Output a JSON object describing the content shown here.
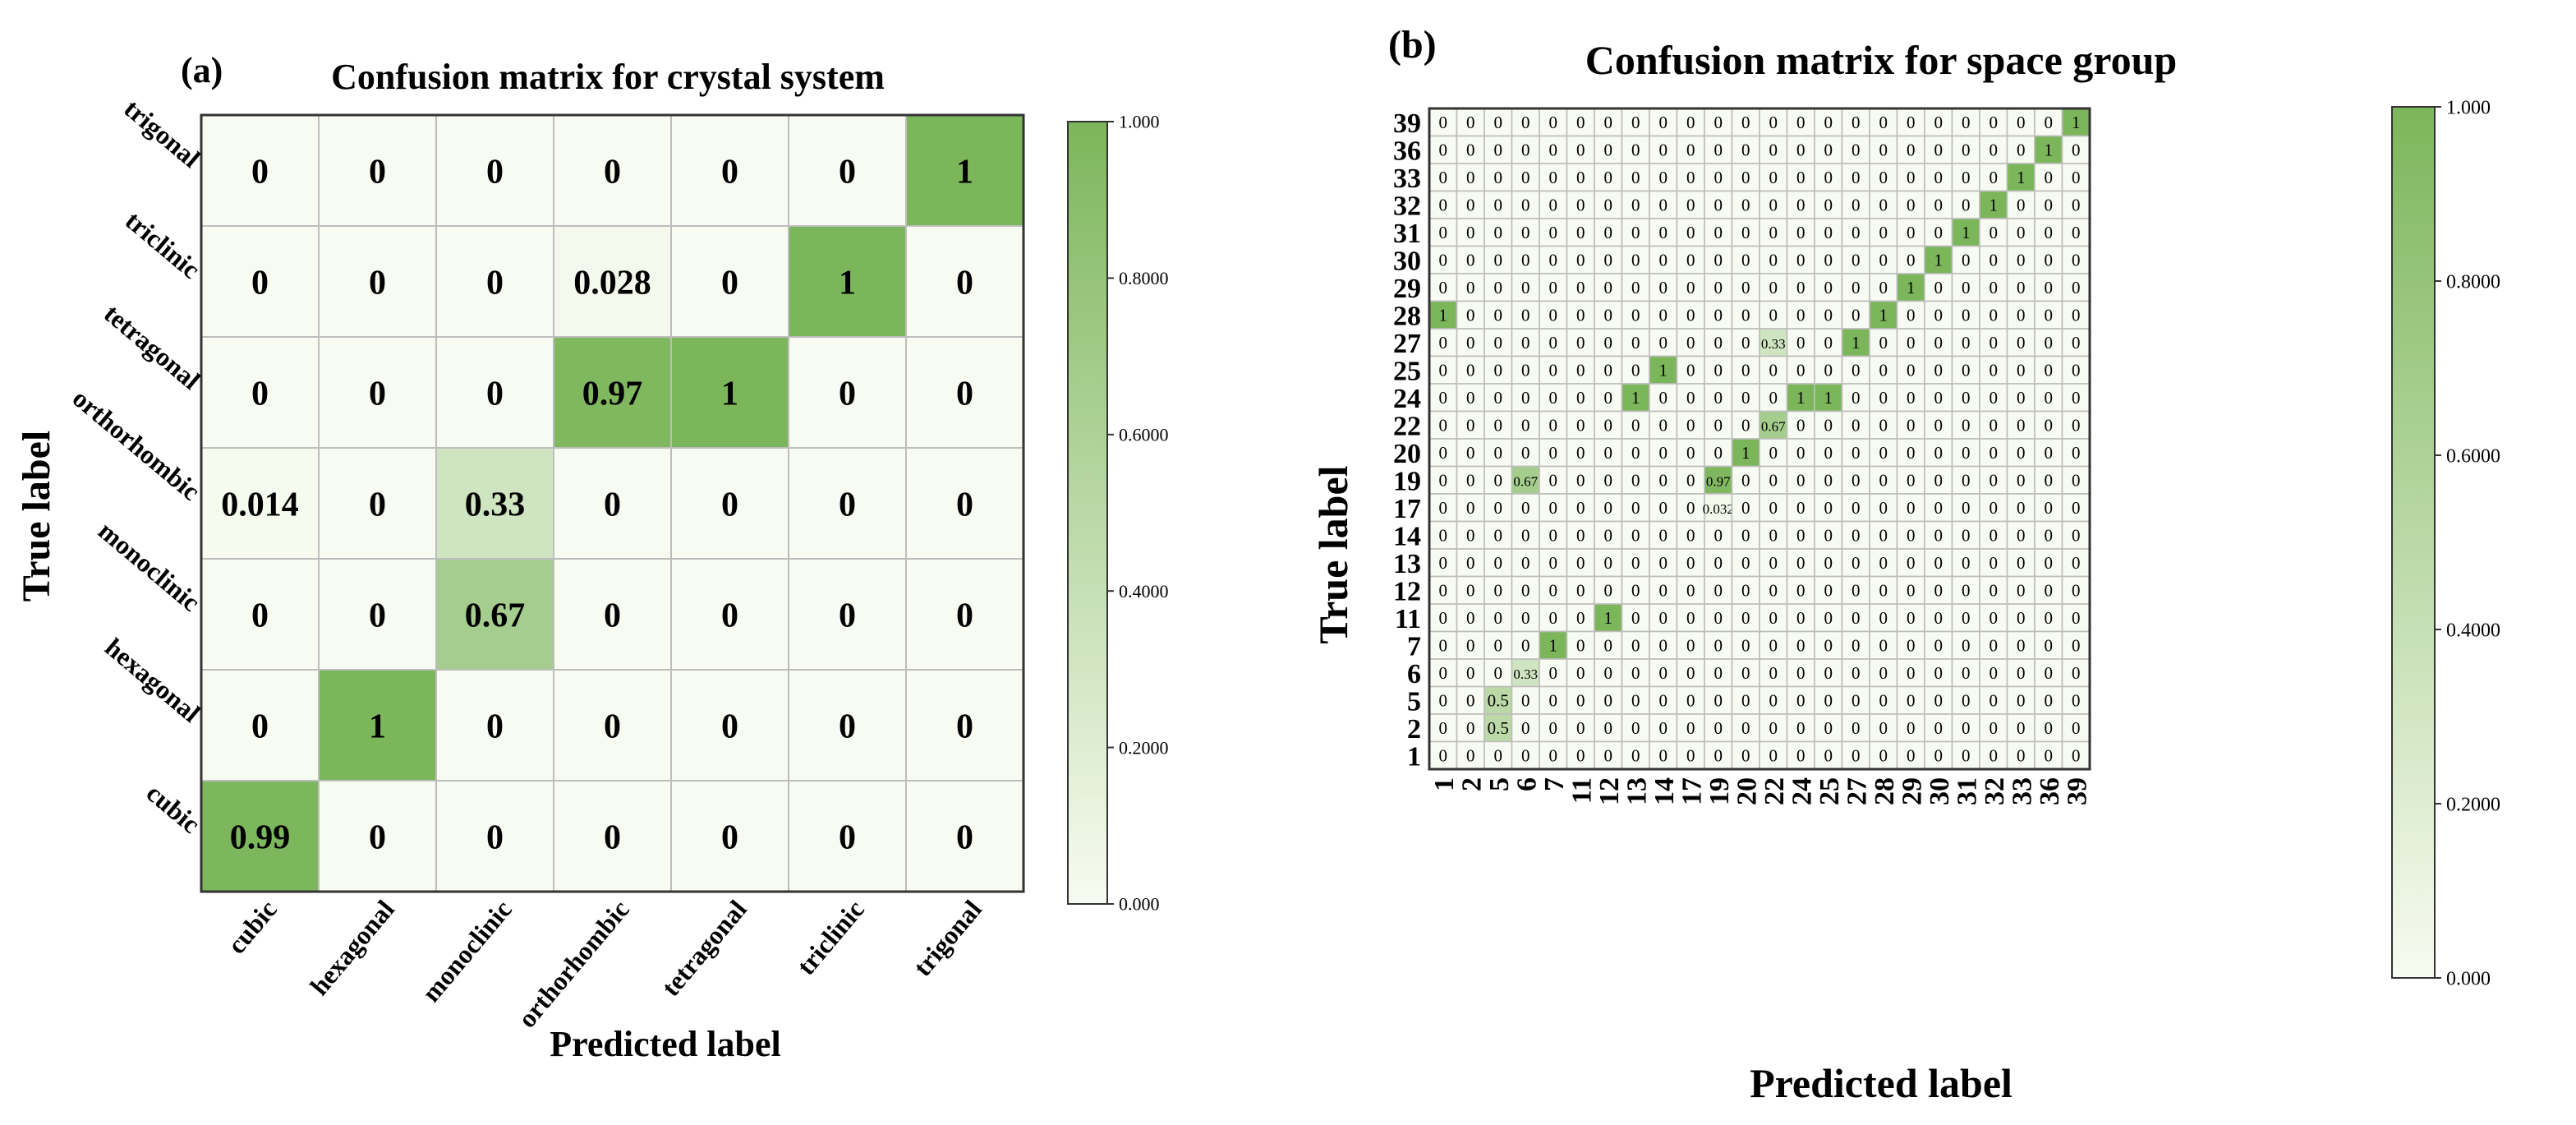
{
  "colors": {
    "low": "#f8fbf1",
    "high": "#7cb65b",
    "grid": "#bdbdbd",
    "frame": "#333333",
    "text": "#000000"
  },
  "chart_data": [
    {
      "type": "heatmap",
      "panel_label": "(a)",
      "title": "Confusion matrix for crystal system",
      "xlabel": "Predicted label",
      "ylabel": "True label",
      "x_categories": [
        "cubic",
        "hexagonal",
        "monoclinic",
        "orthorhombic",
        "tetragonal",
        "triclinic",
        "trigonal"
      ],
      "y_categories_top_to_bottom": [
        "trigonal",
        "triclinic",
        "tetragonal",
        "orthorhombic",
        "monoclinic",
        "hexagonal",
        "cubic"
      ],
      "cells": [
        [
          {
            "label": "0",
            "value": 0
          },
          {
            "label": "0",
            "value": 0
          },
          {
            "label": "0",
            "value": 0
          },
          {
            "label": "0",
            "value": 0
          },
          {
            "label": "0",
            "value": 0
          },
          {
            "label": "0",
            "value": 0
          },
          {
            "label": "1",
            "value": 1
          }
        ],
        [
          {
            "label": "0",
            "value": 0
          },
          {
            "label": "0",
            "value": 0
          },
          {
            "label": "0",
            "value": 0
          },
          {
            "label": "0.028",
            "value": 0.028
          },
          {
            "label": "0",
            "value": 0
          },
          {
            "label": "1",
            "value": 1
          },
          {
            "label": "0",
            "value": 0
          }
        ],
        [
          {
            "label": "0",
            "value": 0
          },
          {
            "label": "0",
            "value": 0
          },
          {
            "label": "0",
            "value": 0
          },
          {
            "label": "0.97",
            "value": 0.97
          },
          {
            "label": "1",
            "value": 1
          },
          {
            "label": "0",
            "value": 0
          },
          {
            "label": "0",
            "value": 0
          }
        ],
        [
          {
            "label": "0.014",
            "value": 0.014
          },
          {
            "label": "0",
            "value": 0
          },
          {
            "label": "0.33",
            "value": 0.33
          },
          {
            "label": "0",
            "value": 0
          },
          {
            "label": "0",
            "value": 0
          },
          {
            "label": "0",
            "value": 0
          },
          {
            "label": "0",
            "value": 0
          }
        ],
        [
          {
            "label": "0",
            "value": 0
          },
          {
            "label": "0",
            "value": 0
          },
          {
            "label": "0.67",
            "value": 0.67
          },
          {
            "label": "0",
            "value": 0
          },
          {
            "label": "0",
            "value": 0
          },
          {
            "label": "0",
            "value": 0
          },
          {
            "label": "0",
            "value": 0
          }
        ],
        [
          {
            "label": "0",
            "value": 0
          },
          {
            "label": "1",
            "value": 1
          },
          {
            "label": "0",
            "value": 0
          },
          {
            "label": "0",
            "value": 0
          },
          {
            "label": "0",
            "value": 0
          },
          {
            "label": "0",
            "value": 0
          },
          {
            "label": "0",
            "value": 0
          }
        ],
        [
          {
            "label": "0.99",
            "value": 0.99
          },
          {
            "label": "0",
            "value": 0
          },
          {
            "label": "0",
            "value": 0
          },
          {
            "label": "0",
            "value": 0
          },
          {
            "label": "0",
            "value": 0
          },
          {
            "label": "0",
            "value": 0
          },
          {
            "label": "0",
            "value": 0
          }
        ]
      ],
      "colorbar": {
        "range": [
          0,
          1
        ],
        "ticks": [
          "0.000",
          "0.2000",
          "0.4000",
          "0.6000",
          "0.8000",
          "1.000"
        ]
      }
    },
    {
      "type": "heatmap",
      "panel_label": "(b)",
      "title": "Confusion matrix for space group",
      "xlabel": "Predicted label",
      "ylabel": "True label",
      "x_categories": [
        "1",
        "2",
        "5",
        "6",
        "7",
        "11",
        "12",
        "13",
        "14",
        "17",
        "19",
        "20",
        "22",
        "24",
        "25",
        "27",
        "28",
        "29",
        "30",
        "31",
        "32",
        "33",
        "36",
        "39"
      ],
      "y_categories_top_to_bottom": [
        "39",
        "36",
        "33",
        "32",
        "31",
        "30",
        "29",
        "28",
        "27",
        "25",
        "24",
        "22",
        "20",
        "19",
        "17",
        "14",
        "13",
        "12",
        "11",
        "7",
        "6",
        "5",
        "2",
        "1"
      ],
      "default_label": "0",
      "nonzero_cells": [
        {
          "row": 0,
          "col": 23,
          "label": "1",
          "value": 1
        },
        {
          "row": 1,
          "col": 22,
          "label": "1",
          "value": 1
        },
        {
          "row": 2,
          "col": 21,
          "label": "1",
          "value": 1
        },
        {
          "row": 3,
          "col": 20,
          "label": "1",
          "value": 1
        },
        {
          "row": 4,
          "col": 19,
          "label": "1",
          "value": 1
        },
        {
          "row": 5,
          "col": 18,
          "label": "1",
          "value": 1
        },
        {
          "row": 6,
          "col": 17,
          "label": "1",
          "value": 1
        },
        {
          "row": 7,
          "col": 0,
          "label": "1",
          "value": 1
        },
        {
          "row": 7,
          "col": 16,
          "label": "1",
          "value": 1
        },
        {
          "row": 8,
          "col": 12,
          "label": "0.33",
          "value": 0.33
        },
        {
          "row": 8,
          "col": 15,
          "label": "1",
          "value": 1
        },
        {
          "row": 9,
          "col": 8,
          "label": "1",
          "value": 1
        },
        {
          "row": 10,
          "col": 7,
          "label": "1",
          "value": 1
        },
        {
          "row": 10,
          "col": 13,
          "label": "1",
          "value": 1
        },
        {
          "row": 10,
          "col": 14,
          "label": "1",
          "value": 1
        },
        {
          "row": 11,
          "col": 12,
          "label": "0.67",
          "value": 0.67
        },
        {
          "row": 12,
          "col": 11,
          "label": "1",
          "value": 1
        },
        {
          "row": 13,
          "col": 3,
          "label": "0.67",
          "value": 0.67
        },
        {
          "row": 13,
          "col": 10,
          "label": "0.97",
          "value": 0.97
        },
        {
          "row": 14,
          "col": 10,
          "label": "0.032",
          "value": 0.032
        },
        {
          "row": 18,
          "col": 6,
          "label": "1",
          "value": 1
        },
        {
          "row": 19,
          "col": 4,
          "label": "1",
          "value": 1
        },
        {
          "row": 20,
          "col": 3,
          "label": "0.33",
          "value": 0.33
        },
        {
          "row": 21,
          "col": 2,
          "label": "0.5",
          "value": 0.5
        },
        {
          "row": 22,
          "col": 2,
          "label": "0.5",
          "value": 0.5
        }
      ],
      "colorbar": {
        "range": [
          0,
          1
        ],
        "ticks": [
          "0.000",
          "0.2000",
          "0.4000",
          "0.6000",
          "0.8000",
          "1.000"
        ]
      }
    }
  ]
}
